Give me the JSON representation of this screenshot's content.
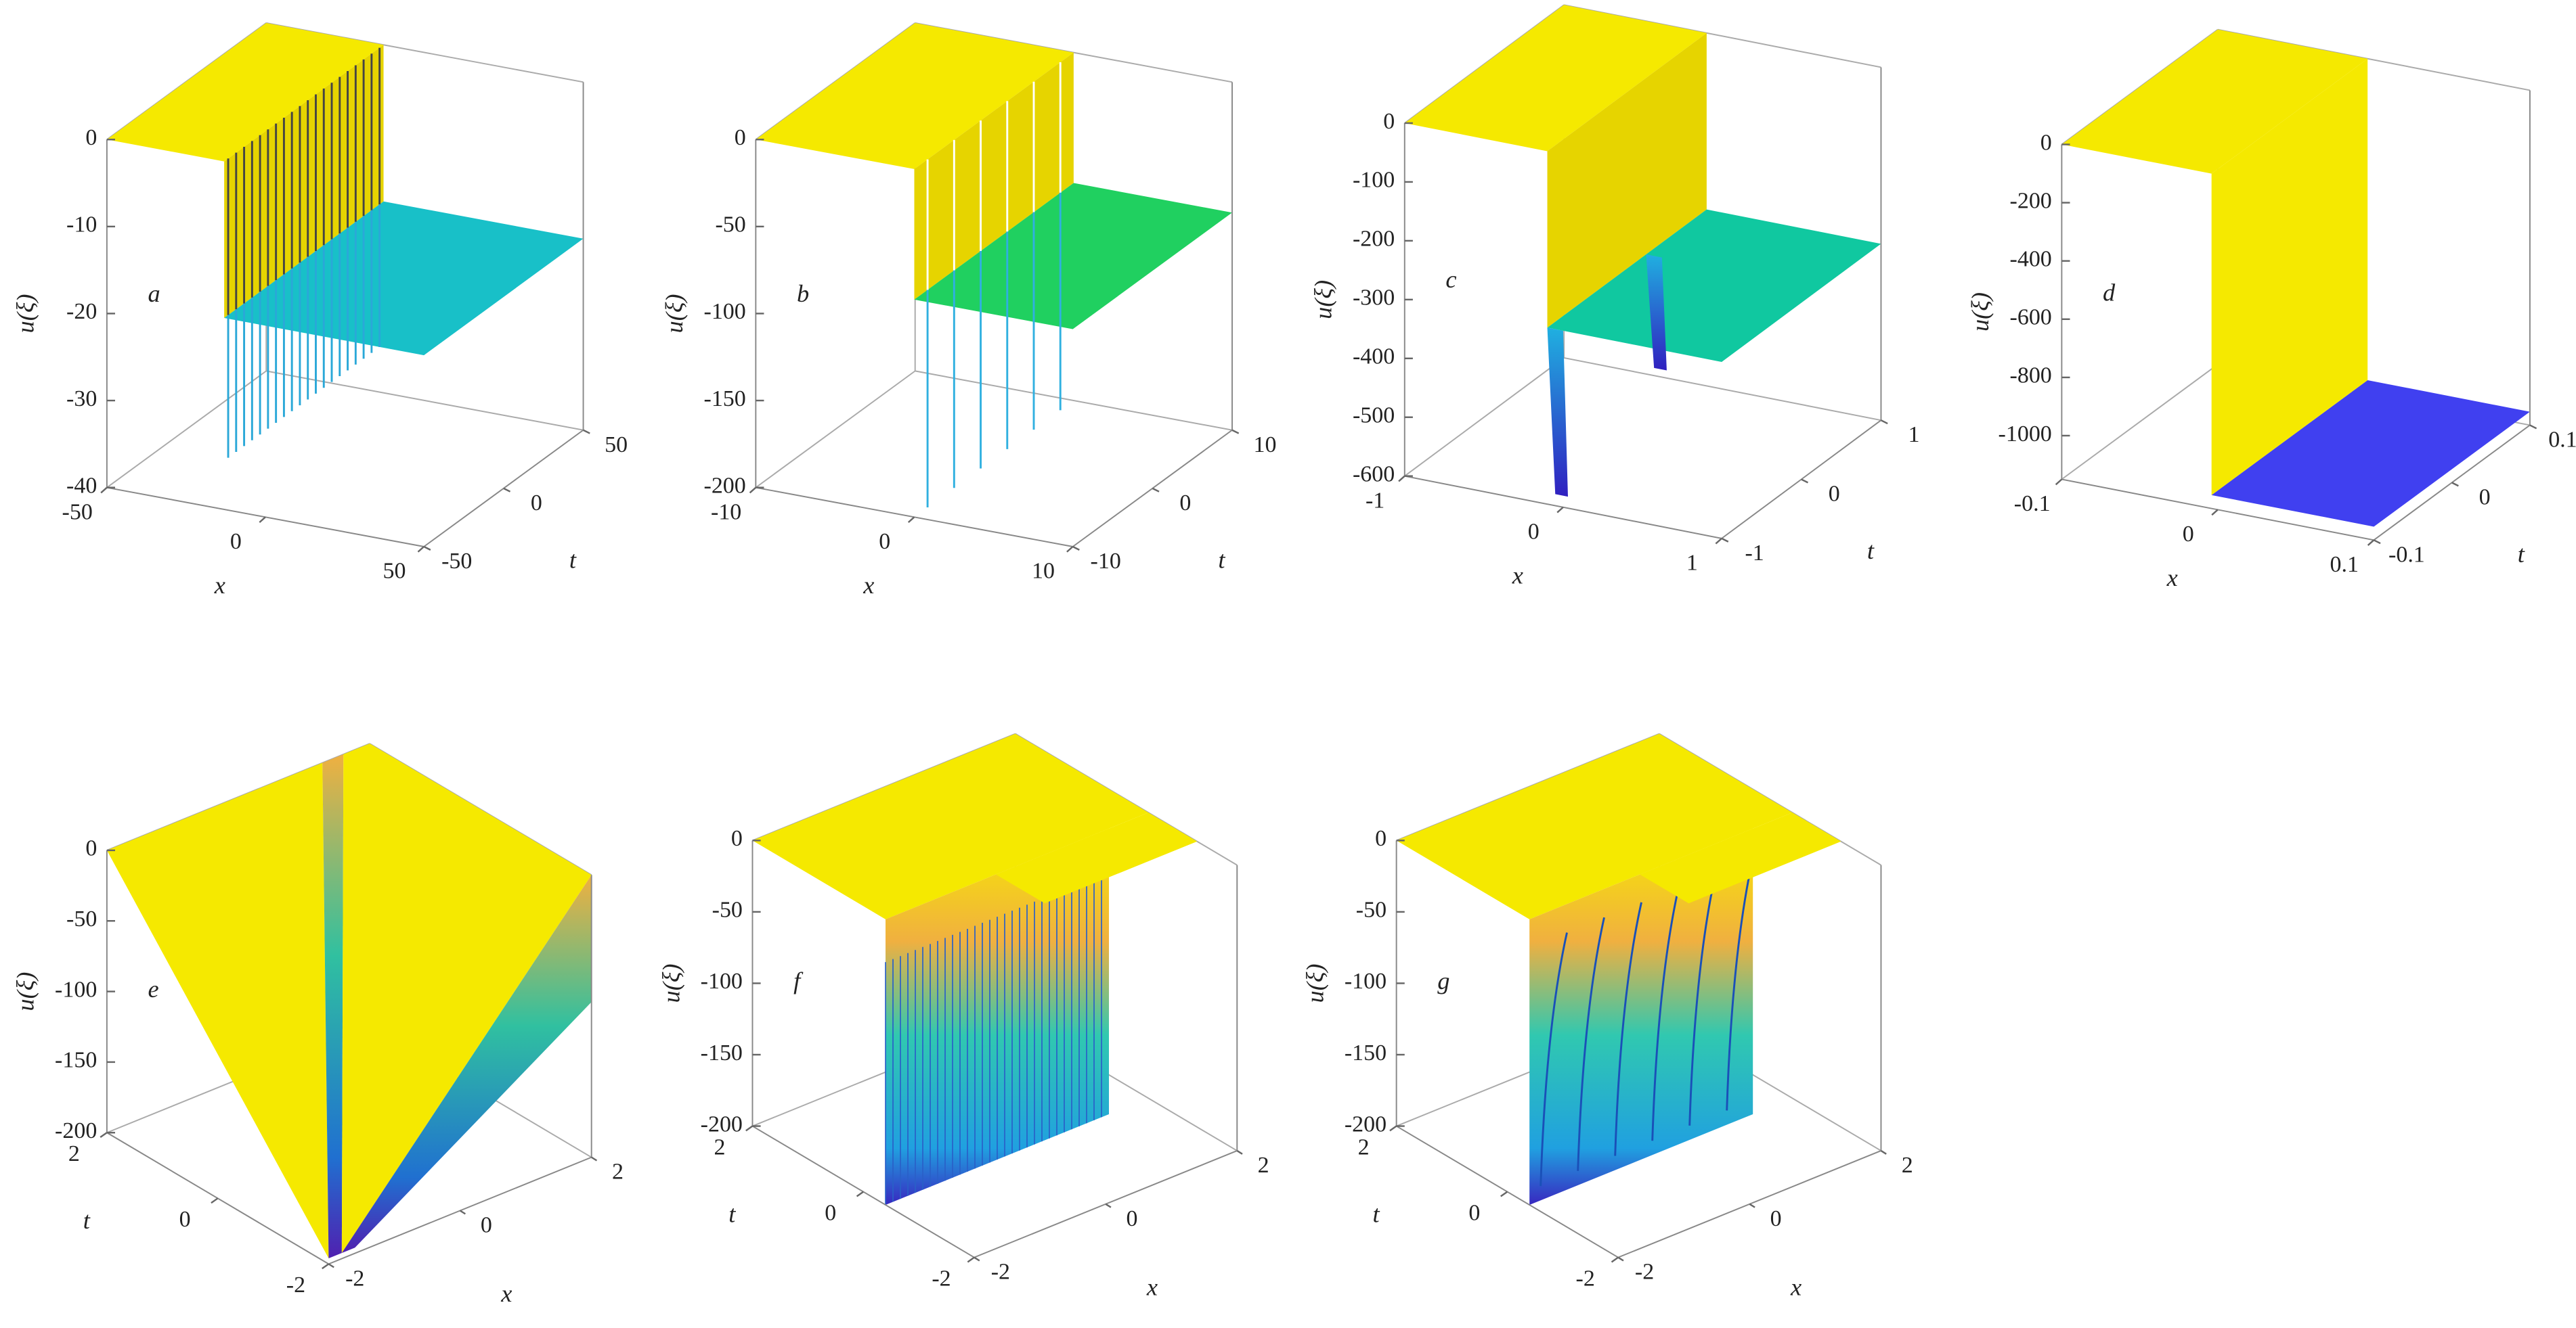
{
  "chart_data": [
    {
      "type": "surface",
      "panel_label": "a",
      "zlabel": "u(ξ)",
      "xlabel": "x",
      "ylabel": "t",
      "zlim": [
        -40,
        0
      ],
      "zticks": [
        0,
        -10,
        -20,
        -30,
        -40
      ],
      "xlim": [
        -50,
        50
      ],
      "xticks": [
        -50,
        0,
        50
      ],
      "ylim": [
        -50,
        50
      ],
      "yticks": [
        -50,
        0,
        50
      ]
    },
    {
      "type": "surface",
      "panel_label": "b",
      "zlabel": "u(ξ)",
      "xlabel": "x",
      "ylabel": "t",
      "zlim": [
        -200,
        0
      ],
      "zticks": [
        0,
        -50,
        -100,
        -150,
        -200
      ],
      "xlim": [
        -10,
        10
      ],
      "xticks": [
        -10,
        0,
        10
      ],
      "ylim": [
        -10,
        10
      ],
      "yticks": [
        -10,
        0,
        10
      ]
    },
    {
      "type": "surface",
      "panel_label": "c",
      "zlabel": "u(ξ)",
      "xlabel": "x",
      "ylabel": "t",
      "zlim": [
        -600,
        0
      ],
      "zticks": [
        0,
        -100,
        -200,
        -300,
        -400,
        -500,
        -600
      ],
      "xlim": [
        -1,
        1
      ],
      "xticks": [
        -1,
        0,
        1
      ],
      "ylim": [
        -1,
        1
      ],
      "yticks": [
        -1,
        0,
        1
      ]
    },
    {
      "type": "surface",
      "panel_label": "d",
      "zlabel": "u(ξ)",
      "xlabel": "x",
      "ylabel": "t",
      "zlim": [
        -1150,
        0
      ],
      "zticks": [
        0,
        -200,
        -400,
        -600,
        -800,
        -1000
      ],
      "xlim": [
        -0.1,
        0.1
      ],
      "xticks": [
        -0.1,
        0,
        0.1
      ],
      "ylim": [
        -0.1,
        0.1
      ],
      "yticks": [
        -0.1,
        0,
        0.1
      ]
    },
    {
      "type": "surface",
      "panel_label": "e",
      "zlabel": "u(ξ)",
      "xlabel": "x",
      "ylabel": "t",
      "zlim": [
        -200,
        0
      ],
      "zticks": [
        0,
        -50,
        -100,
        -150,
        -200
      ],
      "xlim": [
        -2,
        2
      ],
      "xticks": [
        -2,
        0,
        2
      ],
      "ylim": [
        -2,
        2
      ],
      "yticks": [
        -2,
        0,
        2
      ]
    },
    {
      "type": "surface",
      "panel_label": "f",
      "zlabel": "u(ξ)",
      "xlabel": "x",
      "ylabel": "t",
      "zlim": [
        -200,
        0
      ],
      "zticks": [
        0,
        -50,
        -100,
        -150,
        -200
      ],
      "xlim": [
        -2,
        2
      ],
      "xticks": [
        -2,
        0,
        2
      ],
      "ylim": [
        -2,
        2
      ],
      "yticks": [
        -2,
        0,
        2
      ]
    },
    {
      "type": "surface",
      "panel_label": "g",
      "zlabel": "u(ξ)",
      "xlabel": "x",
      "ylabel": "t",
      "zlim": [
        -200,
        0
      ],
      "zticks": [
        0,
        -50,
        -100,
        -150,
        -200
      ],
      "xlim": [
        -2,
        2
      ],
      "xticks": [
        -2,
        0,
        2
      ],
      "ylim": [
        -2,
        2
      ],
      "yticks": [
        -2,
        0,
        2
      ]
    }
  ]
}
